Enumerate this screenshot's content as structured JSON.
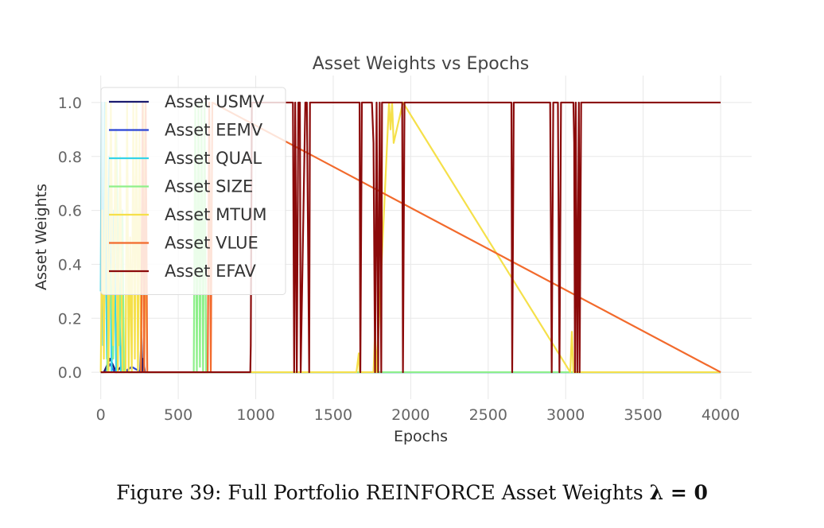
{
  "caption": {
    "prefix": "Figure 39: Full Portfolio REINFORCE Asset Weights",
    "math": "λ = 0"
  },
  "chart_data": {
    "type": "line",
    "title": "Asset Weights vs Epochs",
    "xlabel": "Epochs",
    "ylabel": "Asset Weights",
    "xlim": [
      -60,
      4200
    ],
    "ylim": [
      -0.1,
      1.1
    ],
    "xticks": [
      0,
      500,
      1000,
      1500,
      2000,
      2500,
      3000,
      3500,
      4000
    ],
    "yticks": [
      0.0,
      0.2,
      0.4,
      0.6,
      0.8,
      1.0
    ],
    "xtick_labels": [
      "0",
      "500",
      "1000",
      "1500",
      "2000",
      "2500",
      "3000",
      "3500",
      "4000"
    ],
    "ytick_labels": [
      "0.0",
      "0.2",
      "0.4",
      "0.6",
      "0.8",
      "1.0"
    ],
    "grid": true,
    "legend_position": "upper-left",
    "series": [
      {
        "name": "Asset USMV",
        "color": "#1a1a6e",
        "x": [
          0,
          20,
          60,
          100,
          130,
          180,
          220,
          255,
          262,
          268,
          275,
          285,
          600,
          680,
          700,
          4000
        ],
        "y": [
          0,
          0,
          0.05,
          0,
          0.02,
          0,
          0,
          0,
          0.15,
          0,
          0.05,
          0,
          0,
          0,
          0,
          0
        ]
      },
      {
        "name": "Asset EEMV",
        "color": "#2b45d6",
        "x": [
          0,
          30,
          60,
          90,
          150,
          200,
          260,
          300,
          4000
        ],
        "y": [
          0,
          0,
          0.03,
          0,
          0,
          0.02,
          0,
          0,
          0
        ]
      },
      {
        "name": "Asset QUAL",
        "color": "#35d4e8",
        "x": [
          0,
          5,
          15,
          25,
          40,
          55,
          70,
          85,
          100,
          115,
          130,
          150,
          4000
        ],
        "y": [
          0.3,
          1.0,
          0.1,
          1.0,
          0.05,
          0.8,
          0.0,
          0.6,
          0.0,
          0.4,
          0.0,
          0.0,
          0.0
        ]
      },
      {
        "name": "Asset SIZE",
        "color": "#8ef08a",
        "x": [
          0,
          40,
          60,
          80,
          100,
          120,
          140,
          150,
          600,
          610,
          620,
          630,
          640,
          650,
          660,
          670,
          680,
          690,
          4000
        ],
        "y": [
          0,
          0,
          0.4,
          0.05,
          0.9,
          0.1,
          0.6,
          0.0,
          0.0,
          1.0,
          0.0,
          1.0,
          0.02,
          1.0,
          0.0,
          1.0,
          0.0,
          0.0,
          0.0
        ]
      },
      {
        "name": "Asset MTUM",
        "color": "#f5e04a",
        "x": [
          0,
          10,
          20,
          35,
          50,
          65,
          80,
          95,
          110,
          125,
          140,
          160,
          170,
          180,
          190,
          200,
          210,
          220,
          230,
          240,
          250,
          260,
          275,
          300,
          1650,
          1665,
          1670,
          1680,
          1760,
          1770,
          1780,
          1860,
          1870,
          1880,
          1890,
          1950,
          3030,
          3040,
          3050,
          4000
        ],
        "y": [
          0.0,
          0.6,
          0.05,
          1.0,
          0.0,
          1.0,
          0.1,
          0.9,
          0.0,
          0.8,
          0.0,
          0.0,
          1.0,
          0.0,
          0.5,
          0.0,
          1.0,
          0.05,
          1.0,
          0.0,
          0.9,
          0.0,
          1.0,
          0.0,
          0.0,
          0.07,
          0.0,
          0.0,
          0.0,
          0.15,
          0.0,
          1.0,
          0.9,
          1.0,
          0.85,
          1.0,
          0.0,
          0.15,
          0.0,
          0.0
        ]
      },
      {
        "name": "Asset VLUE",
        "color": "#f26a2c",
        "x": [
          0,
          260,
          270,
          280,
          290,
          300,
          690,
          700,
          710,
          720,
          4000
        ],
        "y": [
          0,
          0,
          1.0,
          0.0,
          1.0,
          0.0,
          0.0,
          1.0,
          0.0,
          1.0,
          0.0
        ]
      },
      {
        "name": "Asset EFAV",
        "color": "#8b0a0a",
        "x": [
          0,
          965,
          968,
          975,
          985,
          1240,
          1248,
          1255,
          1265,
          1275,
          1285,
          1290,
          1320,
          1330,
          1345,
          1350,
          1670,
          1675,
          1685,
          1695,
          1750,
          1760,
          1770,
          1780,
          1790,
          1800,
          1810,
          1815,
          1820,
          1945,
          1950,
          1960,
          1970,
          2650,
          2655,
          2665,
          2675,
          2900,
          2910,
          2920,
          2950,
          2960,
          2970,
          3050,
          3055,
          3060,
          3065,
          3075,
          3085,
          3090,
          3100,
          4000
        ],
        "y": [
          0.0,
          0.0,
          0.1,
          1.0,
          1.0,
          1.0,
          0.0,
          1.0,
          0.0,
          1.0,
          1.0,
          0.0,
          1.0,
          1.0,
          0.0,
          1.0,
          1.0,
          0.0,
          1.0,
          1.0,
          1.0,
          0.85,
          0.0,
          1.0,
          0.0,
          1.0,
          0.0,
          1.0,
          1.0,
          1.0,
          0.0,
          1.0,
          1.0,
          1.0,
          0.0,
          1.0,
          1.0,
          1.0,
          0.0,
          1.0,
          1.0,
          0.0,
          1.0,
          1.0,
          0.85,
          0.0,
          1.0,
          0.0,
          1.0,
          0.0,
          1.0,
          1.0
        ]
      }
    ]
  }
}
